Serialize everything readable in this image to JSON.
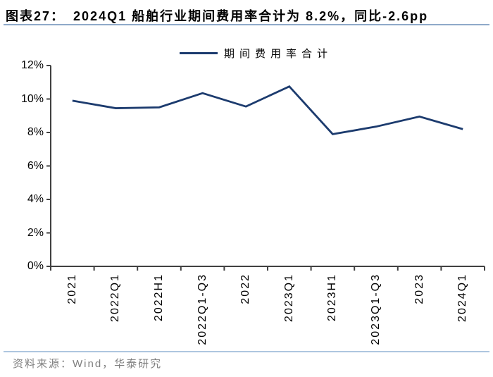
{
  "figure": {
    "label": "图表27：",
    "title": "2024Q1 船舶行业期间费用率合计为 8.2%，同比-2.6pp",
    "source": "资料来源：Wind，华泰研究"
  },
  "chart_data": {
    "type": "line",
    "title": "2024Q1 船舶行业期间费用率合计为 8.2%，同比-2.6pp",
    "categories": [
      "2021",
      "2022Q1",
      "2022H1",
      "2022Q1-Q3",
      "2022",
      "2023Q1",
      "2023H1",
      "2023Q1-Q3",
      "2023",
      "2024Q1"
    ],
    "series": [
      {
        "name": "期间费用率合计",
        "values": [
          9.9,
          9.45,
          9.5,
          10.35,
          9.55,
          10.75,
          7.9,
          8.35,
          8.95,
          8.2
        ],
        "color": "#1C3B6E"
      }
    ],
    "xlabel": "",
    "ylabel": "",
    "ylim": [
      0,
      12
    ],
    "ytick_values": [
      0,
      2,
      4,
      6,
      8,
      10,
      12
    ],
    "yticks": [
      "0%",
      "2%",
      "4%",
      "6%",
      "8%",
      "10%",
      "12%"
    ],
    "grid": false,
    "legend_position": "top-center",
    "x_label_rotation": -90
  },
  "colors": {
    "line": "#1C3B6E",
    "axis": "#404040",
    "title_underline": "#8FA9C9",
    "source_divider": "#AEC6DF",
    "source_text": "#7F7F7F",
    "label_text": "#000000",
    "background": "#FFFFFF"
  }
}
